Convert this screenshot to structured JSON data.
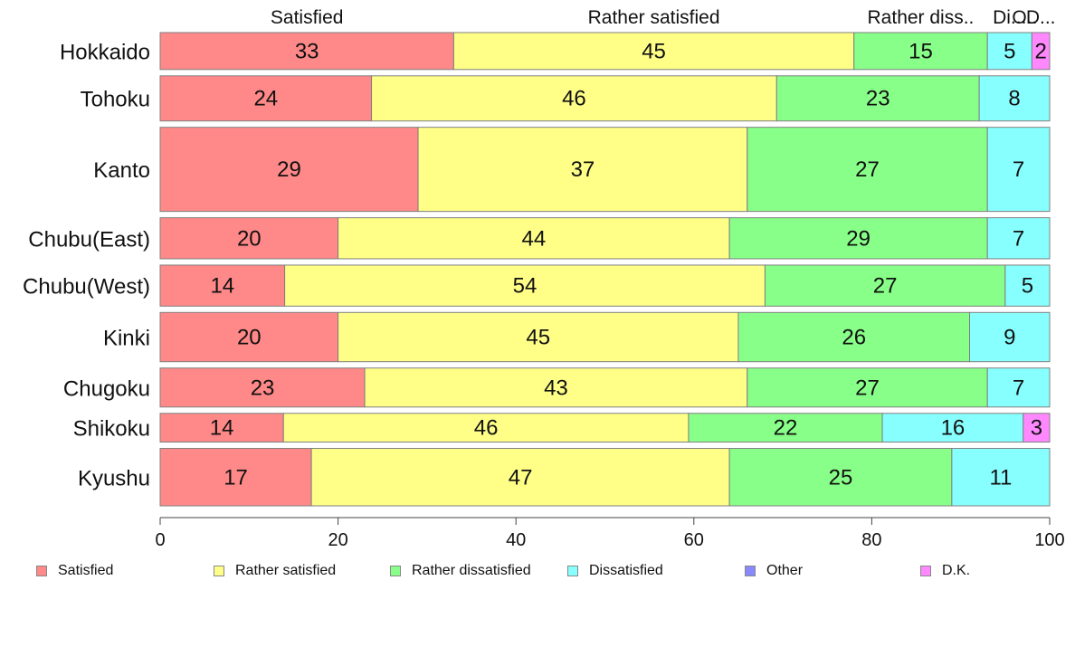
{
  "chart_data": {
    "type": "bar",
    "orientation": "horizontal",
    "stacked": true,
    "categories": [
      "Hokkaido",
      "Tohoku",
      "Kanto",
      "Chubu(East)",
      "Chubu(West)",
      "Kinki",
      "Chugoku",
      "Shikoku",
      "Kyushu"
    ],
    "series": [
      {
        "name": "Satisfied",
        "color": "#FF8888",
        "top_label": "Satisfied",
        "values": [
          33,
          24,
          29,
          20,
          14,
          20,
          23,
          14,
          17
        ]
      },
      {
        "name": "Rather satisfied",
        "color": "#FFFF88",
        "top_label": "Rather satisfied",
        "values": [
          45,
          46,
          37,
          44,
          54,
          45,
          43,
          46,
          47
        ]
      },
      {
        "name": "Rather dissatisfied",
        "color": "#88FF88",
        "top_label": "Rather diss..",
        "values": [
          15,
          23,
          27,
          29,
          27,
          26,
          27,
          22,
          25
        ]
      },
      {
        "name": "Dissatisfied",
        "color": "#88FFFF",
        "top_label": "Di...",
        "values": [
          5,
          8,
          7,
          7,
          5,
          9,
          7,
          16,
          11
        ]
      },
      {
        "name": "Other",
        "color": "#8888FF",
        "top_label": "O..",
        "values": [
          0,
          0,
          0,
          0,
          0,
          0,
          0,
          0,
          0
        ]
      },
      {
        "name": "D.K.",
        "color": "#FF88FF",
        "top_label": "D...",
        "values": [
          2,
          0,
          0,
          0,
          0,
          0,
          0,
          3,
          0
        ]
      }
    ],
    "row_weights": [
      0.9,
      1.1,
      2.05,
      1.0,
      1.0,
      1.2,
      0.95,
      0.7,
      1.4
    ],
    "xlim": [
      0,
      100
    ],
    "xticks": [
      "0",
      "20",
      "40",
      "60",
      "80",
      "100"
    ],
    "legend_position": "bottom",
    "grid": false
  }
}
